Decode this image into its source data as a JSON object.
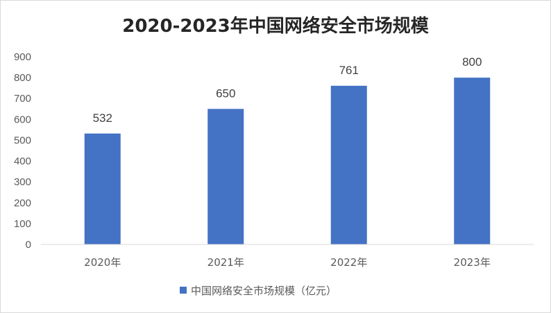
{
  "chart_data": {
    "type": "bar",
    "title": "2020-2023年中国网络安全市场规模",
    "categories": [
      "2020年",
      "2021年",
      "2022年",
      "2023年"
    ],
    "series": [
      {
        "name": "中国网络安全市场规模（亿元）",
        "values": [
          532,
          650,
          761,
          800
        ],
        "color": "#4472C4"
      }
    ],
    "ylim": [
      0,
      900
    ],
    "yticks": [
      0,
      100,
      200,
      300,
      400,
      500,
      600,
      700,
      800,
      900
    ],
    "grid": false,
    "legend": "bottom"
  }
}
